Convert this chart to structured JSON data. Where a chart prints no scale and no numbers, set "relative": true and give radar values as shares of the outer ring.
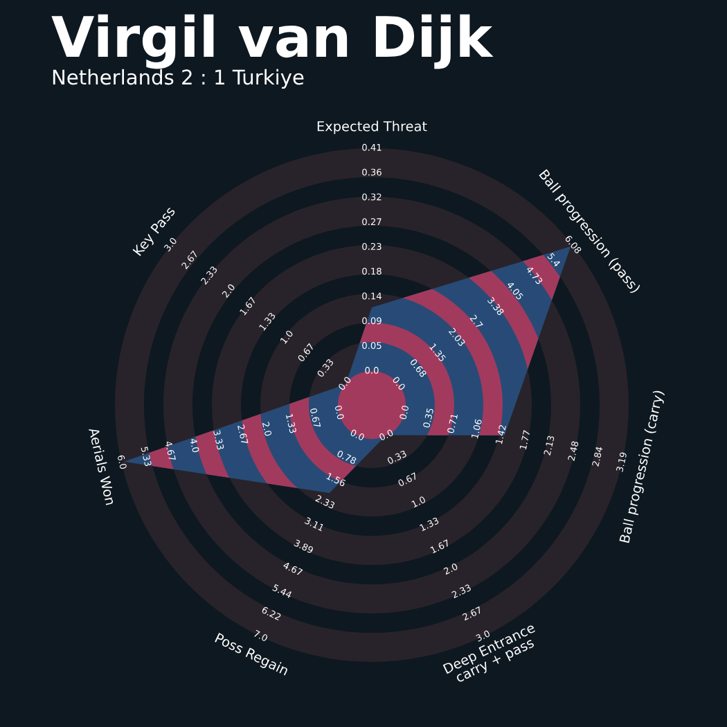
{
  "chart_data": {
    "type": "radar",
    "title": "Virgil van Dijk",
    "subtitle": "Netherlands 2 : 1 Turkiye",
    "categories": [
      "Expected Threat",
      "Ball progression (pass)",
      "Ball progression (carry)",
      "Deep Entrance\ncarry + pass",
      "Poss Regain",
      "Aerials Won",
      "Key Pass"
    ],
    "relative": true,
    "series": [
      {
        "color": "#274b76",
        "values": [
          0.38,
          0.99,
          0.53,
          0.13,
          0.38,
          0.99,
          0.13
        ]
      }
    ],
    "annotations": [
      "0.0",
      "0.05",
      "0.09",
      "0.14",
      "0.18",
      "0.23",
      "0.27",
      "0.32",
      "0.36",
      "0.41",
      "0.0",
      "0.68",
      "1.35",
      "2.03",
      "2.7",
      "3.38",
      "4.05",
      "4.73",
      "5.4",
      "6.08",
      "0.0",
      "0.35",
      "0.71",
      "1.06",
      "1.42",
      "1.77",
      "2.13",
      "2.48",
      "2.84",
      "3.19",
      "0.0",
      "0.33",
      "0.67",
      "1.0",
      "1.33",
      "1.67",
      "2.0",
      "2.33",
      "2.67",
      "3.0",
      "0.0",
      "0.78",
      "1.56",
      "2.33",
      "3.11",
      "3.89",
      "4.67",
      "5.44",
      "6.22",
      "7.0",
      "0.0",
      "0.67",
      "1.33",
      "2.0",
      "2.67",
      "3.33",
      "4.0",
      "4.67",
      "5.33",
      "6.0",
      "0.0",
      "0.33",
      "0.67",
      "1.0",
      "1.33",
      "1.67",
      "2.0",
      "2.33",
      "2.67",
      "3.0"
    ]
  }
}
